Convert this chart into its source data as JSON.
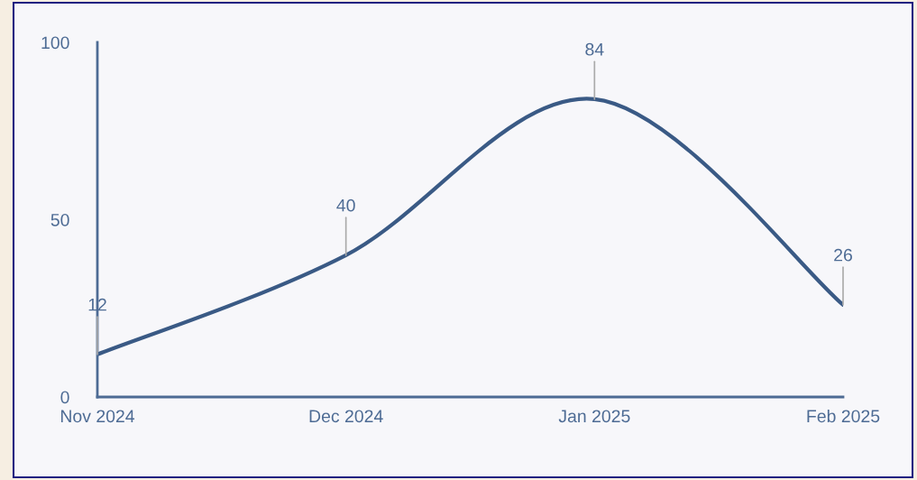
{
  "chart_data": {
    "type": "line",
    "categories": [
      "Nov 2024",
      "Dec 2024",
      "Jan 2025",
      "Feb 2025"
    ],
    "series": [
      {
        "color": "#3a5a85",
        "values": [
          12,
          40,
          84,
          26
        ]
      }
    ],
    "ylim": [
      0,
      100
    ],
    "yticks": [
      0,
      50,
      100
    ],
    "grid": false,
    "legend": false,
    "marker": "none",
    "line_style": "solid",
    "data_labels": true
  }
}
